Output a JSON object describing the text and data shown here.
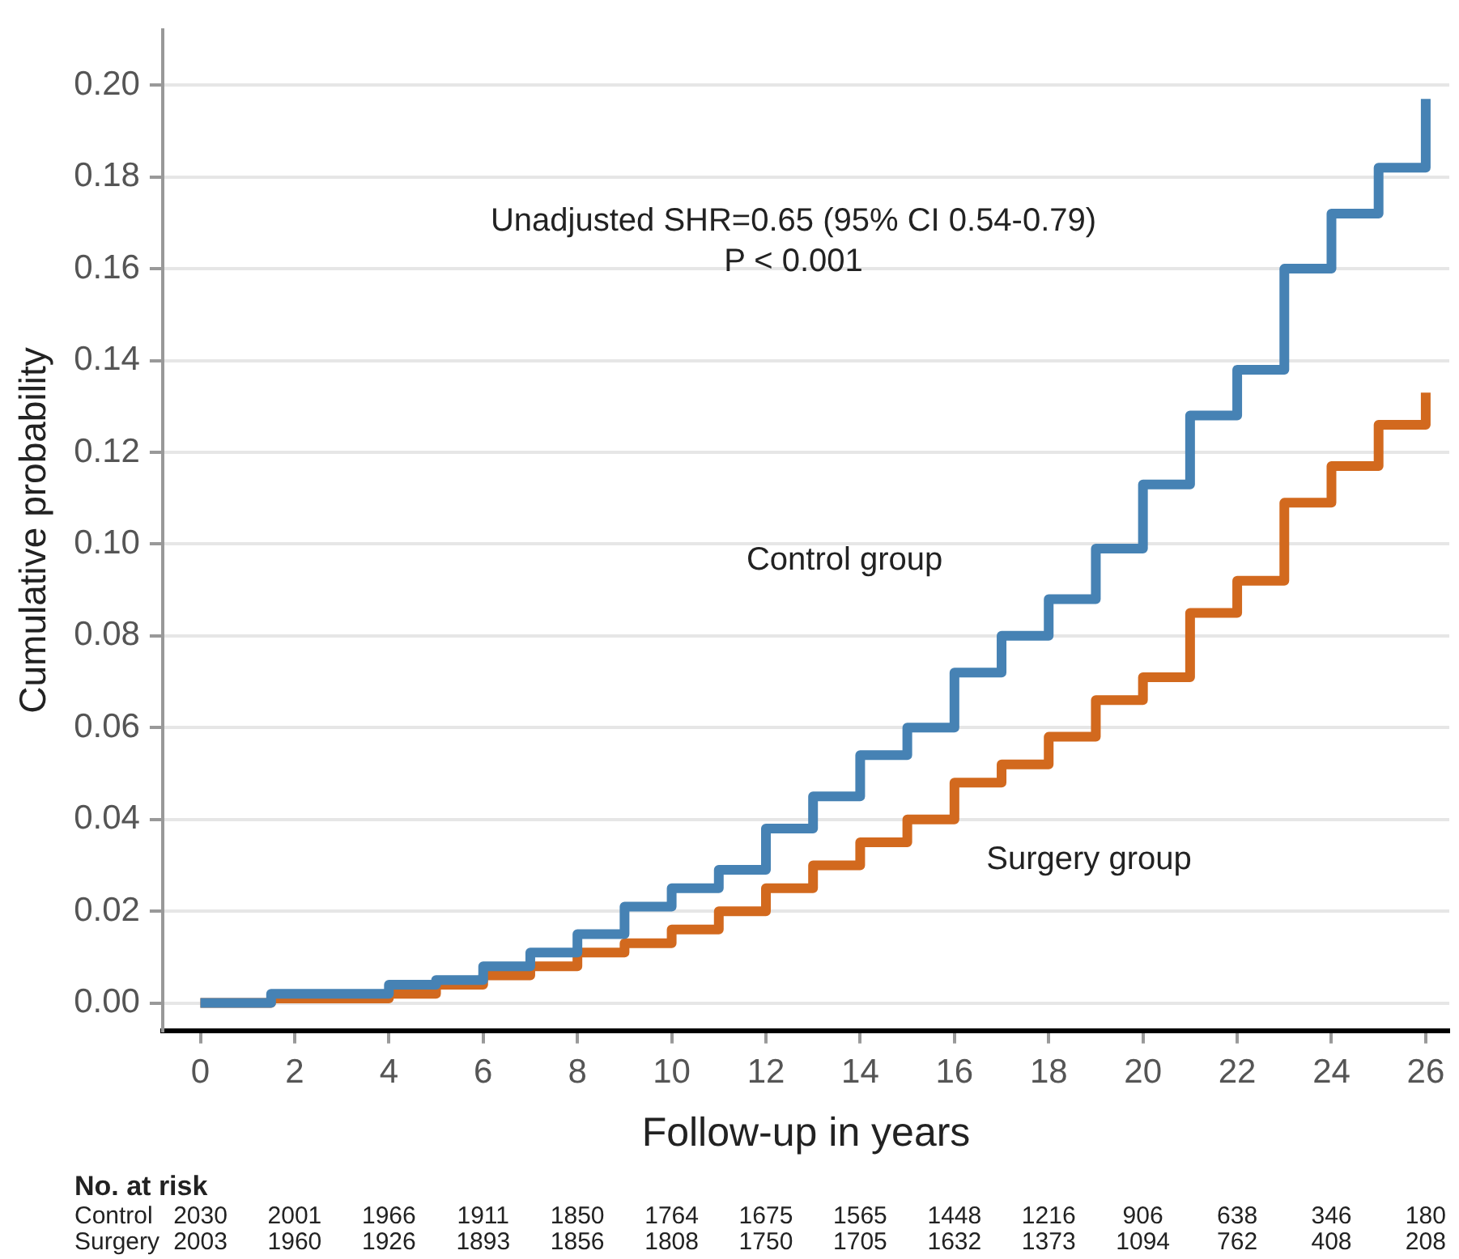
{
  "chart_data": {
    "type": "step",
    "xlabel": "Follow-up in years",
    "ylabel": "Cumulative probability",
    "series": [
      {
        "name": "Control group",
        "color": "#4682b4",
        "x": [
          0,
          1,
          1.5,
          3.5,
          4,
          5,
          6,
          7,
          8,
          9,
          10,
          11,
          12,
          13,
          14,
          15,
          16,
          17,
          18,
          19,
          20,
          21,
          22,
          23,
          24,
          25,
          26
        ],
        "values": [
          0,
          0,
          0.002,
          0.002,
          0.004,
          0.005,
          0.008,
          0.011,
          0.015,
          0.021,
          0.025,
          0.029,
          0.038,
          0.045,
          0.054,
          0.06,
          0.072,
          0.08,
          0.088,
          0.099,
          0.113,
          0.128,
          0.138,
          0.16,
          0.172,
          0.182,
          0.197
        ]
      },
      {
        "name": "Surgery group",
        "color": "#d2691e",
        "x": [
          0,
          1,
          1.5,
          3.5,
          4,
          5,
          6,
          7,
          8,
          9,
          10,
          11,
          12,
          13,
          14,
          15,
          16,
          17,
          18,
          19,
          20,
          21,
          22,
          23,
          24,
          25,
          26
        ],
        "values": [
          0,
          0,
          0.001,
          0.001,
          0.002,
          0.004,
          0.006,
          0.008,
          0.011,
          0.013,
          0.016,
          0.02,
          0.025,
          0.03,
          0.035,
          0.04,
          0.048,
          0.052,
          0.058,
          0.066,
          0.071,
          0.085,
          0.092,
          0.109,
          0.117,
          0.126,
          0.133
        ]
      }
    ],
    "xlim": [
      -0.8,
      26.5
    ],
    "xticks": [
      0,
      2,
      4,
      6,
      8,
      10,
      12,
      14,
      16,
      18,
      20,
      22,
      24,
      26
    ],
    "ylim": [
      -0.006,
      0.212
    ],
    "yticks": [
      {
        "value": 0,
        "label": "0.00"
      },
      {
        "value": 0.02,
        "label": "0.02"
      },
      {
        "value": 0.04,
        "label": "0.04"
      },
      {
        "value": 0.06,
        "label": "0.06"
      },
      {
        "value": 0.08,
        "label": "0.08"
      },
      {
        "value": 0.1,
        "label": "0.10"
      },
      {
        "value": 0.12,
        "label": "0.12"
      },
      {
        "value": 0.14,
        "label": "0.14"
      },
      {
        "value": 0.16,
        "label": "0.16"
      },
      {
        "value": 0.18,
        "label": "0.18"
      },
      {
        "value": 0.2,
        "label": "0.20"
      }
    ],
    "annotations": [
      "Unadjusted SHR=0.65 (95% CI 0.54-0.79)",
      "P < 0.001",
      "No. at risk",
      "Control 2030 2001 1966 1911 1850 1764 1675 1565 1448 1216 906 638 346 180",
      "Surgery 2003 1960 1926 1893 1856 1808 1750 1705 1632 1373 1094 762 408 208"
    ],
    "grid": "y",
    "legend": false,
    "line_style": "solid",
    "marker": "none"
  }
}
